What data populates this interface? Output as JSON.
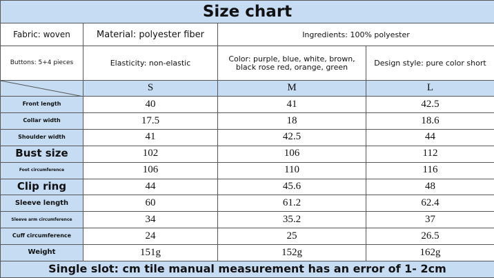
{
  "header": {
    "title": "Size chart"
  },
  "info": {
    "fabric": "Fabric: woven",
    "material": "Material: polyester fiber",
    "ingredients": "Ingredients: 100% polyester",
    "buttons": "Buttons: 5+4 pieces",
    "elasticity": "Elasticity: non-elastic",
    "color": "Color: purple, blue, white, brown, black rose red, orange, green",
    "design": "Design style: pure color short"
  },
  "table": {
    "sizes": [
      "S",
      "M",
      "L"
    ],
    "rows": [
      [
        "Front length",
        40,
        41,
        42.5
      ],
      [
        "Collar width",
        17.5,
        18,
        18.6
      ],
      [
        "Shoulder width",
        41,
        42.5,
        44
      ],
      [
        "Bust size",
        102,
        106,
        112
      ],
      [
        "Foot circumference",
        106,
        110,
        116
      ],
      [
        "Clip ring",
        44,
        45.6,
        48
      ],
      [
        "Sleeve length",
        60,
        61.2,
        62.4
      ],
      [
        "Sleeve arm circumference",
        34,
        35.2,
        37
      ],
      [
        "Cuff circumference",
        24,
        25,
        26.5
      ],
      [
        "Weight",
        "151g",
        "152g",
        "162g"
      ]
    ]
  },
  "footer": {
    "note": "Single slot: cm tile manual measurement has an error of 1- 2cm"
  }
}
